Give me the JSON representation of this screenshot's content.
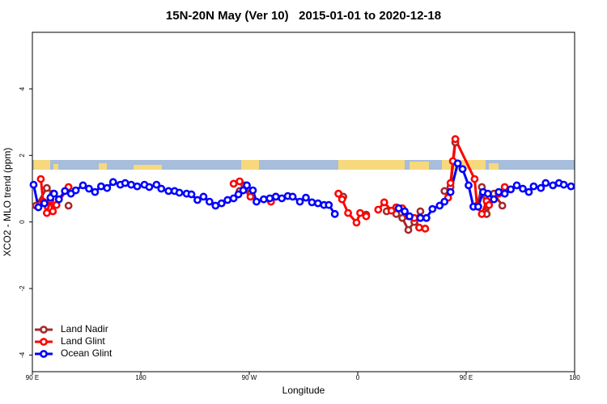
{
  "chart_data": {
    "type": "line",
    "title": "15N-20N May (Ver 10)   2015-01-01 to 2020-12-18",
    "x_label": "Longitude",
    "y_label": "XCO2 - MLO trend (ppm)",
    "xlim": [
      90,
      540
    ],
    "ylim": [
      -4.5,
      5.7
    ],
    "xticks": [
      {
        "value": 90,
        "label": "90 E"
      },
      180,
      {
        "value": 270,
        "label": "90 W"
      },
      {
        "value": 360,
        "label": "0"
      },
      {
        "value": 450,
        "label": "90 E"
      },
      {
        "value": 540,
        "label": "180"
      }
    ],
    "yticks": [
      -4,
      -2,
      0,
      2,
      4
    ],
    "legend": "bottom-left",
    "series": [
      {
        "name": "Land Nadir",
        "color": "#a52a2a",
        "x": [
          93,
          102,
          107,
          null,
          120,
          null,
          262,
          266,
          271,
          null,
          344,
          348,
          null,
          367,
          null,
          384,
          392,
          397,
          402,
          407,
          412,
          null,
          432,
          437,
          441,
          null,
          459,
          463,
          467,
          473,
          480
        ],
        "values": [
          0.49,
          1.02,
          0.85,
          null,
          0.49,
          null,
          0.93,
          1.1,
          0.85,
          null,
          0.85,
          0.76,
          null,
          0.22,
          null,
          0.32,
          0.24,
          0.12,
          -0.24,
          0.0,
          0.32,
          null,
          0.93,
          1.05,
          2.39,
          null,
          0.49,
          1.05,
          0.24,
          0.85,
          0.49
        ]
      },
      {
        "name": "Land Glint",
        "color": "#ff0000",
        "x": [
          97,
          99,
          102,
          105,
          107,
          110,
          120,
          null,
          257,
          262,
          266,
          271,
          null,
          288,
          292,
          null,
          344,
          347,
          352,
          359,
          362,
          367,
          null,
          377,
          382,
          388,
          392,
          397,
          402,
          407,
          411,
          416,
          null,
          435,
          437,
          439,
          441,
          457,
          459,
          463,
          467,
          469,
          477,
          482
        ],
        "values": [
          1.29,
          0.61,
          0.27,
          0.66,
          0.32,
          0.51,
          1.05,
          null,
          1.15,
          1.22,
          0.98,
          0.76,
          null,
          0.61,
          0.76,
          null,
          0.85,
          0.68,
          0.27,
          -0.02,
          0.27,
          0.17,
          null,
          0.37,
          0.59,
          0.34,
          0.44,
          0.41,
          0.17,
          0.12,
          -0.17,
          -0.2,
          null,
          0.73,
          1.17,
          1.83,
          2.49,
          1.29,
          0.49,
          0.24,
          0.63,
          0.51,
          0.85,
          1.05
        ]
      },
      {
        "name": "Ocean Glint",
        "color": "#0000ff",
        "x": [
          91,
          95,
          100,
          105,
          108,
          112,
          117,
          122,
          126,
          132,
          137,
          142,
          147,
          152,
          157,
          163,
          167,
          172,
          177,
          183,
          187,
          193,
          197,
          203,
          208,
          212,
          218,
          222,
          227,
          232,
          237,
          242,
          247,
          252,
          257,
          261,
          265,
          268,
          273,
          276,
          282,
          287,
          292,
          297,
          302,
          306,
          312,
          317,
          322,
          327,
          332,
          336,
          341,
          null,
          394,
          399,
          403,
          412,
          417,
          422,
          428,
          432,
          437,
          443,
          447,
          452,
          456,
          460,
          464,
          468,
          473,
          477,
          482,
          487,
          492,
          497,
          502,
          506,
          512,
          516,
          522,
          527,
          531,
          537
        ],
        "values": [
          1.12,
          0.44,
          0.56,
          0.73,
          0.85,
          0.68,
          0.93,
          0.85,
          0.95,
          1.1,
          1.0,
          0.9,
          1.07,
          1.02,
          1.2,
          1.12,
          1.17,
          1.12,
          1.07,
          1.12,
          1.05,
          1.12,
          1.0,
          0.93,
          0.93,
          0.88,
          0.85,
          0.83,
          0.66,
          0.76,
          0.61,
          0.49,
          0.56,
          0.66,
          0.71,
          0.83,
          0.95,
          1.1,
          0.95,
          0.61,
          0.68,
          0.71,
          0.76,
          0.71,
          0.78,
          0.76,
          0.61,
          0.73,
          0.59,
          0.56,
          0.51,
          0.51,
          0.24,
          null,
          0.41,
          0.32,
          0.17,
          0.12,
          0.12,
          0.39,
          0.49,
          0.61,
          0.9,
          1.76,
          1.59,
          1.1,
          0.46,
          0.46,
          0.9,
          0.85,
          0.68,
          0.9,
          0.85,
          0.98,
          1.1,
          1.0,
          0.9,
          1.07,
          1.02,
          1.17,
          1.1,
          1.17,
          1.12,
          1.07
        ]
      }
    ]
  }
}
